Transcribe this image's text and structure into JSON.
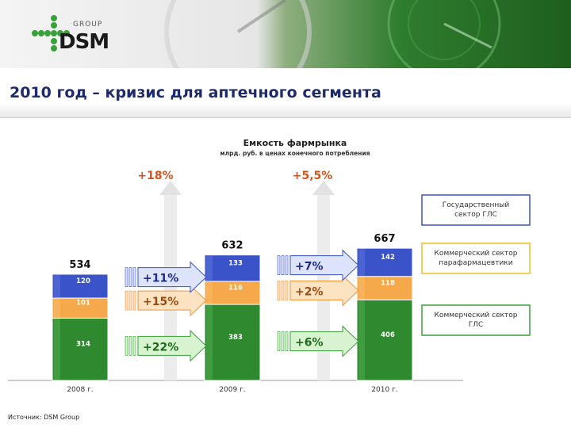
{
  "logo": {
    "group_text": "GROUP",
    "brand_text": "DSM"
  },
  "page_title": "2010 год – кризис для аптечного сегмента",
  "source_note": "Источник: DSM Group",
  "colors": {
    "government": "#3a53c8",
    "parapharmacy": "#f6a94a",
    "commercial": "#2f8a2f",
    "title": "#1f2a6b"
  },
  "chart_data": {
    "type": "bar",
    "stacked": true,
    "title": "Емкость фармрынка",
    "subtitle": "млрд. руб. в ценах конечного потребления",
    "categories": [
      "2008 г.",
      "2009 г.",
      "2010 г."
    ],
    "series": [
      {
        "name": "Коммерческий сектор ГЛС",
        "values": [
          314,
          383,
          406
        ],
        "color": "#2f8a2f"
      },
      {
        "name": "Коммерческий сектор парафармацевтики",
        "values": [
          101,
          116,
          118
        ],
        "color": "#f6a94a"
      },
      {
        "name": "Государственный сектор ГЛС",
        "values": [
          120,
          133,
          142
        ],
        "color": "#3a53c8"
      }
    ],
    "totals": [
      534,
      632,
      667
    ],
    "growth_total": [
      "+18%",
      "+5,5%"
    ],
    "growth_by_segment": {
      "government": [
        "+11%",
        "+7%"
      ],
      "parapharmacy": [
        "+15%",
        "+2%"
      ],
      "commercial": [
        "+22%",
        "+6%"
      ]
    },
    "legend_placement": "right",
    "ylim": [
      0,
      690
    ],
    "grid": false
  }
}
